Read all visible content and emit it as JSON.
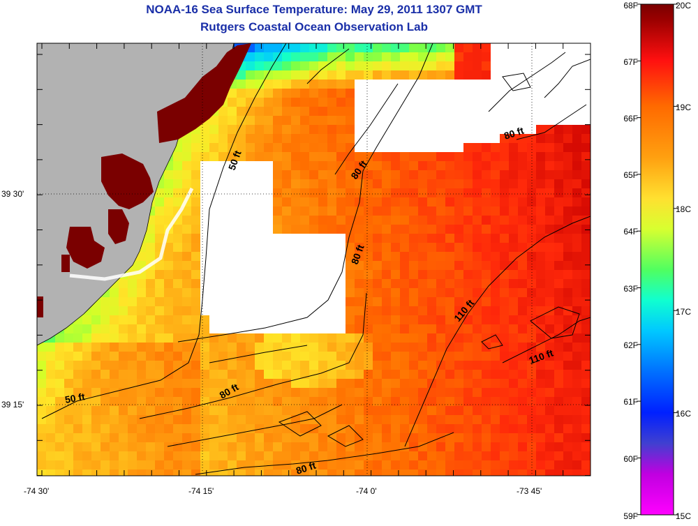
{
  "header": {
    "title": "NOAA-16 Sea Surface Temperature:  May 29, 2011 1307 GMT",
    "subtitle": "Rutgers Coastal Ocean Observation Lab"
  },
  "map": {
    "lon_labels": [
      "-74 30'",
      "-74 15'",
      "-74 0'",
      "-73 45'"
    ],
    "lat_labels": [
      "39 30'",
      "39 15'"
    ],
    "contour_labels": [
      "50 ft",
      "50 ft",
      "80 ft",
      "80 ft",
      "80 ft",
      "80 ft",
      "80 ft",
      "110 ft",
      "110 ft"
    ],
    "colors": {
      "land": "#b2b2b2",
      "cloud": "#ffffff",
      "hot_land": "#7a0000"
    }
  },
  "colorbar": {
    "fahrenheit": [
      "68F",
      "67F",
      "66F",
      "65F",
      "64F",
      "63F",
      "62F",
      "61F",
      "60F",
      "59F"
    ],
    "celsius": [
      "20C",
      "19C",
      "18C",
      "17C",
      "16C",
      "15C"
    ]
  }
}
